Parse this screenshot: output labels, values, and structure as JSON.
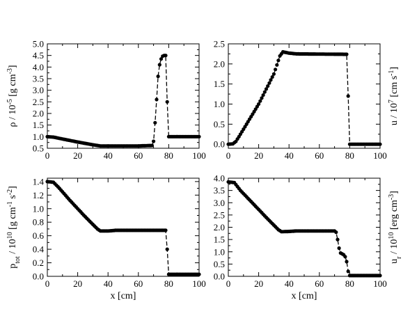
{
  "chart_data": [
    {
      "id": "rho",
      "type": "scatter",
      "ylabel_parts": {
        "pre": "ρ / 10",
        "exp": "-5",
        "post": " [g cm",
        "exp2": "-3",
        "tail": "]"
      },
      "xlim": [
        0,
        100
      ],
      "ylim": [
        0.5,
        5.0
      ],
      "xticks": [
        0,
        20,
        40,
        60,
        80,
        100
      ],
      "yticks": [
        0.5,
        1.0,
        1.5,
        2.0,
        2.5,
        3.0,
        3.5,
        4.0,
        4.5,
        5.0
      ],
      "ytick_labels": [
        "0.5",
        "1.0",
        "1.5",
        "2.0",
        "2.5",
        "3.0",
        "3.5",
        "4.0",
        "4.5",
        "5.0"
      ],
      "keypoints": [
        [
          0,
          1.0
        ],
        [
          4,
          0.98
        ],
        [
          10,
          0.9
        ],
        [
          20,
          0.77
        ],
        [
          30,
          0.65
        ],
        [
          35,
          0.6
        ],
        [
          40,
          0.6
        ],
        [
          60,
          0.6
        ],
        [
          69,
          0.62
        ],
        [
          70,
          0.8
        ],
        [
          71,
          1.6
        ],
        [
          72,
          2.6
        ],
        [
          73,
          3.6
        ],
        [
          74,
          4.1
        ],
        [
          75,
          4.35
        ],
        [
          76,
          4.47
        ],
        [
          77,
          4.5
        ],
        [
          78,
          4.5
        ],
        [
          78.5,
          4.2
        ],
        [
          79,
          2.5
        ],
        [
          79.5,
          1.0
        ],
        [
          80,
          1.0
        ],
        [
          100,
          1.0
        ]
      ]
    },
    {
      "id": "u",
      "type": "scatter",
      "ylabel_parts": {
        "pre": "u / 10",
        "exp": "7",
        "post": " [cm s",
        "exp2": "-1",
        "tail": "]"
      },
      "xlim": [
        0,
        100
      ],
      "ylim": [
        -0.1,
        2.5
      ],
      "xticks": [
        0,
        20,
        40,
        60,
        80,
        100
      ],
      "yticks": [
        0.0,
        0.5,
        1.0,
        1.5,
        2.0,
        2.5
      ],
      "ytick_labels": [
        "0.0",
        "0.5",
        "1.0",
        "1.5",
        "2.0",
        "2.5"
      ],
      "keypoints": [
        [
          0,
          0.0
        ],
        [
          3,
          0.01
        ],
        [
          5,
          0.07
        ],
        [
          8,
          0.25
        ],
        [
          12,
          0.5
        ],
        [
          20,
          1.0
        ],
        [
          30,
          1.75
        ],
        [
          34,
          2.2
        ],
        [
          36,
          2.3
        ],
        [
          40,
          2.27
        ],
        [
          45,
          2.25
        ],
        [
          78,
          2.24
        ],
        [
          78.7,
          1.75
        ],
        [
          79.3,
          0.65
        ],
        [
          80,
          0.0
        ],
        [
          100,
          0.0
        ]
      ]
    },
    {
      "id": "ptot",
      "type": "scatter",
      "ylabel_parts": {
        "pre": "p",
        "sub": "tot",
        "mid": " / 10",
        "exp": "10",
        "post": " [g cm",
        "exp2": "-1",
        "post2": " s",
        "exp3": "-2",
        "tail": "]"
      },
      "xlim": [
        0,
        100
      ],
      "ylim": [
        0.0,
        1.45
      ],
      "xticks": [
        0,
        20,
        40,
        60,
        80,
        100
      ],
      "yticks": [
        0.0,
        0.2,
        0.4,
        0.6,
        0.8,
        1.0,
        1.2,
        1.4
      ],
      "ytick_labels": [
        "0.0",
        "0.2",
        "0.4",
        "0.6",
        "0.8",
        "1.0",
        "1.2",
        "1.4"
      ],
      "xlabel": "x [cm]",
      "keypoints": [
        [
          0,
          1.4
        ],
        [
          4,
          1.39
        ],
        [
          8,
          1.3
        ],
        [
          15,
          1.12
        ],
        [
          25,
          0.88
        ],
        [
          33,
          0.7
        ],
        [
          35,
          0.67
        ],
        [
          40,
          0.67
        ],
        [
          45,
          0.68
        ],
        [
          78,
          0.68
        ],
        [
          78.5,
          0.62
        ],
        [
          79,
          0.4
        ],
        [
          79.5,
          0.1
        ],
        [
          80,
          0.03
        ],
        [
          100,
          0.03
        ]
      ]
    },
    {
      "id": "ur",
      "type": "scatter",
      "ylabel_parts": {
        "pre": "u",
        "sub": "r",
        "mid": " / 10",
        "exp": "10",
        "post": " [erg cm",
        "exp2": "-3",
        "tail": "]"
      },
      "xlim": [
        0,
        100
      ],
      "ylim": [
        0.0,
        4.0
      ],
      "xticks": [
        0,
        20,
        40,
        60,
        80,
        100
      ],
      "yticks": [
        0.0,
        0.5,
        1.0,
        1.5,
        2.0,
        2.5,
        3.0,
        3.5,
        4.0
      ],
      "ytick_labels": [
        "0.0",
        "0.5",
        "1.0",
        "1.5",
        "2.0",
        "2.5",
        "3.0",
        "3.5",
        "4.0"
      ],
      "xlabel": "x [cm]",
      "keypoints": [
        [
          0,
          3.85
        ],
        [
          4,
          3.82
        ],
        [
          8,
          3.5
        ],
        [
          15,
          3.05
        ],
        [
          25,
          2.4
        ],
        [
          33,
          1.9
        ],
        [
          35,
          1.82
        ],
        [
          40,
          1.83
        ],
        [
          45,
          1.85
        ],
        [
          70,
          1.85
        ],
        [
          71,
          1.8
        ],
        [
          72,
          1.5
        ],
        [
          73,
          1.15
        ],
        [
          74,
          0.95
        ],
        [
          76,
          0.88
        ],
        [
          77,
          0.8
        ],
        [
          78,
          0.6
        ],
        [
          79,
          0.2
        ],
        [
          80,
          0.03
        ],
        [
          100,
          0.03
        ]
      ]
    }
  ]
}
